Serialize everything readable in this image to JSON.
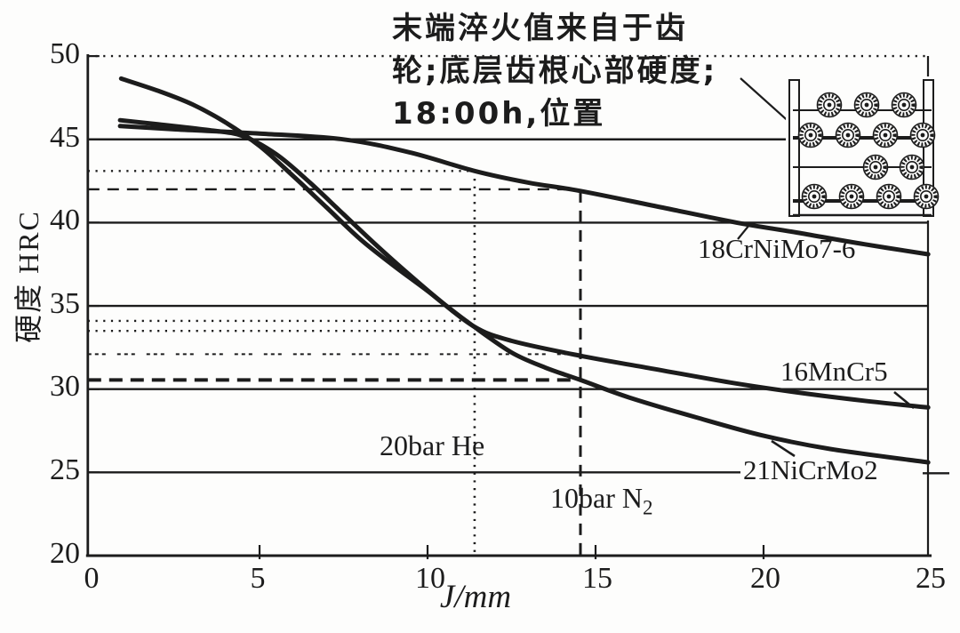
{
  "chart_data": {
    "type": "line",
    "xlabel": "J/mm",
    "ylabel": "硬度 HRC",
    "xlim": [
      0,
      25
    ],
    "ylim": [
      20,
      50
    ],
    "xticks": [
      "0",
      "5",
      "10",
      "15",
      "20",
      "25"
    ],
    "yticks": [
      "50",
      "45",
      "40",
      "35",
      "30",
      "25",
      "20"
    ],
    "grid_hrc_solid": [
      45,
      40,
      35,
      30,
      25
    ],
    "grid_hrc_dotted": [
      50
    ],
    "series": [
      {
        "name": "18CrNiMo7-6",
        "points": [
          [
            0.85,
            45.8
          ],
          [
            2.5,
            45.6
          ],
          [
            5,
            45.35
          ],
          [
            7.5,
            45.0
          ],
          [
            9.5,
            44.2
          ],
          [
            11.4,
            43.1
          ],
          [
            13,
            42.4
          ],
          [
            14.55,
            41.9
          ],
          [
            17,
            40.9
          ],
          [
            19.2,
            40.0
          ],
          [
            21,
            39.4
          ],
          [
            23,
            38.7
          ],
          [
            24.9,
            38.1
          ]
        ]
      },
      {
        "name": "16MnCr5",
        "points": [
          [
            0.88,
            48.65
          ],
          [
            2,
            47.9
          ],
          [
            3,
            47.1
          ],
          [
            4,
            46.0
          ],
          [
            5,
            44.6
          ],
          [
            6,
            42.8
          ],
          [
            7,
            40.9
          ],
          [
            8,
            39.0
          ],
          [
            9,
            37.4
          ],
          [
            10,
            35.9
          ],
          [
            11.35,
            33.8
          ],
          [
            12.5,
            32.9
          ],
          [
            14.55,
            32.0
          ],
          [
            16.5,
            31.3
          ],
          [
            19,
            30.4
          ],
          [
            21,
            29.8
          ],
          [
            23,
            29.3
          ],
          [
            24.9,
            28.9
          ]
        ]
      },
      {
        "name": "21NiCrMo2",
        "points": [
          [
            0.85,
            46.15
          ],
          [
            2,
            45.9
          ],
          [
            3.5,
            45.55
          ],
          [
            4.5,
            45.2
          ],
          [
            5.5,
            44.1
          ],
          [
            6.5,
            42.4
          ],
          [
            7.5,
            40.5
          ],
          [
            8.5,
            38.6
          ],
          [
            9.5,
            36.8
          ],
          [
            10.5,
            35.1
          ],
          [
            11.35,
            33.8
          ],
          [
            12.5,
            32.2
          ],
          [
            13.5,
            31.3
          ],
          [
            14.55,
            30.55
          ],
          [
            16,
            29.5
          ],
          [
            18,
            28.3
          ],
          [
            20,
            27.2
          ],
          [
            22,
            26.4
          ],
          [
            24.9,
            25.6
          ]
        ]
      }
    ],
    "reference_lines": [
      {
        "orient": "h",
        "hrc": 43.1,
        "j_from": 0,
        "j_to": 11.4,
        "style": "dotted"
      },
      {
        "orient": "h",
        "hrc": 42.0,
        "j_from": 0,
        "j_to": 14.35,
        "style": "dashed"
      },
      {
        "orient": "h",
        "hrc": 34.1,
        "j_from": 0,
        "j_to": 11.4,
        "style": "dotted"
      },
      {
        "orient": "h",
        "hrc": 33.5,
        "j_from": 0,
        "j_to": 11.4,
        "style": "dotted"
      },
      {
        "orient": "h",
        "hrc": 32.1,
        "j_from": 0,
        "j_to": 14.25,
        "style": "dashdot"
      },
      {
        "orient": "h",
        "hrc": 30.55,
        "j_from": 0,
        "j_to": 14.45,
        "style": "bolddash"
      },
      {
        "orient": "v",
        "j": 11.4,
        "hrc_from": 43.1,
        "hrc_to": 20,
        "style": "dotted"
      },
      {
        "orient": "v",
        "j": 14.55,
        "hrc_from": 41.9,
        "hrc_to": 20,
        "style": "dashed"
      }
    ],
    "condition_labels": {
      "helium": "20bar He",
      "nitrogen_main": "10bar N",
      "nitrogen_sub": "2"
    },
    "annotation": {
      "line1": "末端淬火值来自于齿",
      "line2": "轮;底层齿根心部硬度;",
      "line3": "18:00h,位置"
    },
    "icons": {
      "gear_rack_inset": "rack-of-gears-drawing"
    },
    "ink_color": "#1c1c1c"
  }
}
